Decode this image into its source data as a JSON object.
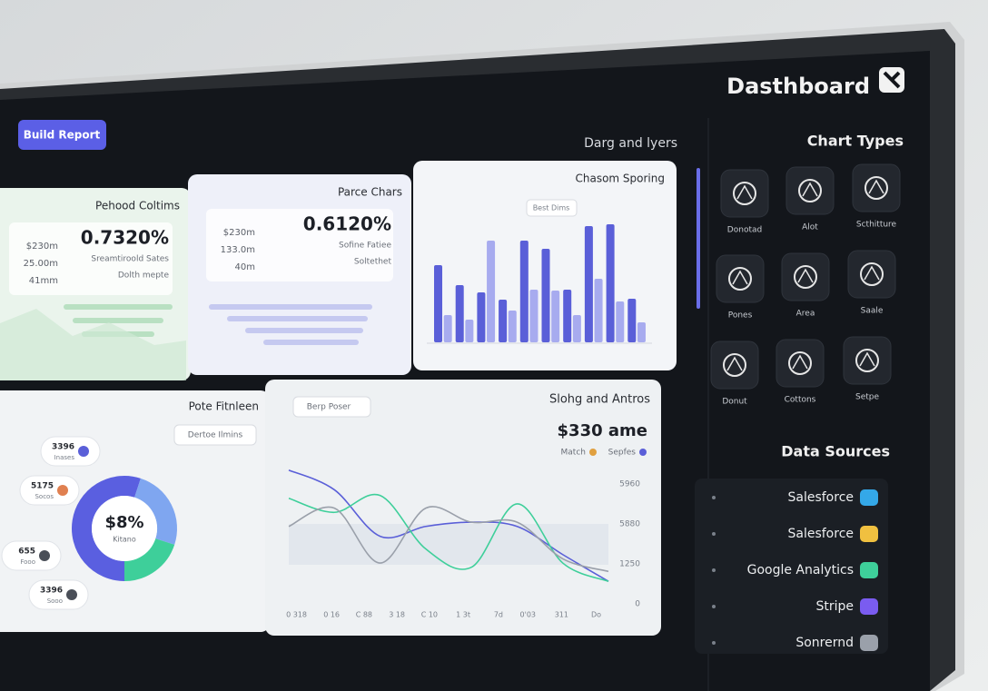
{
  "header": {
    "title": "Dasthboard",
    "button": "Build Report",
    "subtitle": "Darg and lyers"
  },
  "sidebar": {
    "chart_types_title": "Chart Types",
    "chart_types": [
      "Donotad",
      "Alot",
      "Scthitture",
      "Pones",
      "Area",
      "Saale",
      "Donut",
      "Cottons",
      "Setpe"
    ],
    "data_sources_title": "Data Sources",
    "data_sources": [
      "Salesforce",
      "Salesforce",
      "Google Analytics",
      "Stripe",
      "Sonrernd"
    ]
  },
  "card_period": {
    "title": "Pehood Coltims",
    "value": "0.7320%",
    "line1": "Sreamtiroold Sates",
    "line2": "Dolth mepte",
    "side": [
      "$230m",
      "25.00m",
      "41mm"
    ]
  },
  "card_parce": {
    "title": "Parce Chars",
    "value": "0.6120%",
    "line1": "Sofine Fatiee",
    "line2": "Soltethet",
    "side": [
      "$230m",
      "133.0m",
      "40m"
    ]
  },
  "bar_card": {
    "title": "Chasom Sporing",
    "badge": "Best Dims",
    "ylim": [
      0,
      140
    ],
    "series": [
      {
        "color": "#5a5fd8",
        "values": [
          85,
          63,
          55,
          47,
          112,
          103,
          58,
          128,
          130,
          48
        ]
      },
      {
        "color": "#a7abef",
        "values": [
          30,
          25,
          112,
          35,
          58,
          57,
          30,
          70,
          45,
          22
        ]
      }
    ]
  },
  "donut_card": {
    "title": "Pote Fitnleen",
    "badge": "Dertoe Ilmins",
    "center": "$8%",
    "center_label": "Kitano",
    "values": [
      55,
      25,
      20
    ],
    "colors": [
      "#5a5fe0",
      "#7fa6f0",
      "#3ecf9a"
    ],
    "callouts": [
      {
        "value": "3396",
        "label": "Inases"
      },
      {
        "value": "5175",
        "label": "Socos"
      },
      {
        "value": "655",
        "label": "Fooo"
      },
      {
        "value": "3396",
        "label": "Sooo"
      }
    ]
  },
  "line_card": {
    "title": "Slohg and Antros",
    "badge": "Berp Poser",
    "value": "$330 ame",
    "legend": [
      {
        "name": "Sepfes",
        "color": "#5a5fd8"
      },
      {
        "name": "Match",
        "color": "#e0a040"
      }
    ],
    "y_labels": [
      "5960",
      "5880",
      "1250",
      "0"
    ],
    "x_labels": [
      "Do",
      "311",
      "0'03",
      "7d",
      "1 3t",
      "C 10",
      "3 18",
      "C 88",
      "0 16",
      "0 318"
    ],
    "ylim": [
      0,
      100
    ],
    "series": [
      {
        "color": "#5a5fd8",
        "values": [
          95,
          81,
          48,
          55,
          58,
          55,
          35,
          16
        ]
      },
      {
        "color": "#3ecf9a",
        "values": [
          75,
          65,
          77,
          39,
          26,
          71,
          29,
          16
        ]
      },
      {
        "color": "#9aa0aa",
        "values": [
          55,
          68,
          29,
          68,
          58,
          58,
          32,
          23
        ]
      }
    ]
  }
}
